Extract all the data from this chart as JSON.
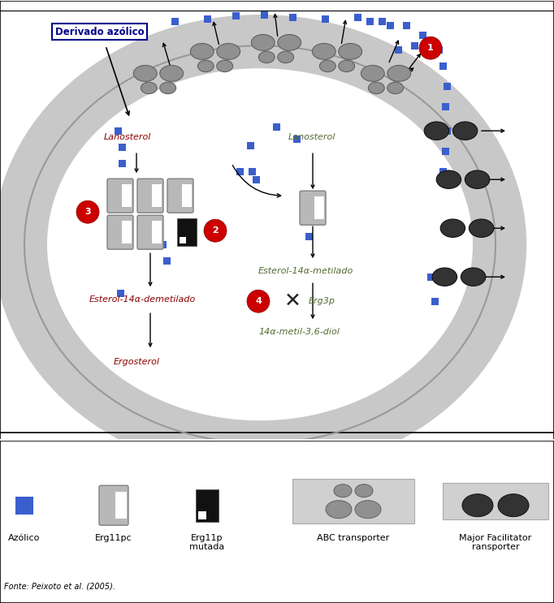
{
  "bg_color": "#ffffff",
  "azolic_blue": "#3a5fcd",
  "red_circle": "#cc0000",
  "olive_green": "#556b2f",
  "dark_red": "#8b0000",
  "membrane_gray": "#c0c0c0",
  "erg11p_gray": "#b0b0b0",
  "abc_gray": "#909090",
  "mft_dark": "#2a2a2a",
  "derivado_label": "Derivado azólico",
  "lanosterol_left": "Lanosterol",
  "lanosterol_right": "Lanosterol",
  "esterol_demetilado": "Esterol-14α-demetilado",
  "esterol_metilado": "Esterol-14α-metilado",
  "ergosterol": "Ergosterol",
  "metil_diol": "14α-metil-3,6-diol",
  "erg3p": "Erg3p",
  "legend_azolico": "Azólico",
  "legend_erg11pc": "Erg11pc",
  "legend_erg11p_mutada": "Erg11p\nmutada",
  "legend_abc": "ABC transporter",
  "legend_mft": "Major Facilitator\nransporter",
  "fonte": "Fonte: Peixoto et al. (2005).",
  "fig_width": 6.82,
  "fig_height": 7.43,
  "dpi": 100
}
